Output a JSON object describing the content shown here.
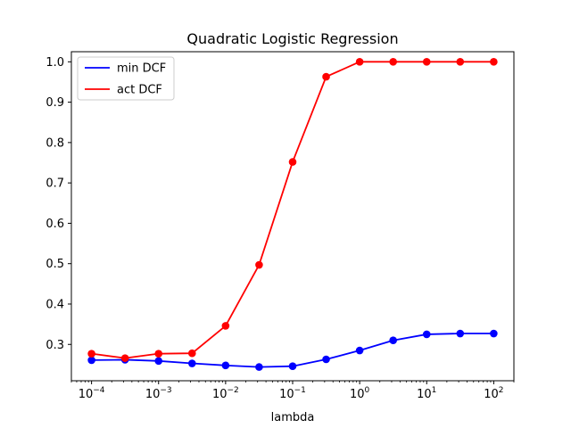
{
  "chart_data": {
    "type": "line",
    "title": "Quadratic Logistic Regression",
    "xlabel": "lambda",
    "ylabel": "",
    "xscale": "log",
    "x": [
      0.0001,
      0.000316,
      0.001,
      0.00316,
      0.01,
      0.0316,
      0.1,
      0.316,
      1,
      3.16,
      10,
      31.6,
      100
    ],
    "xlim": [
      5e-05,
      200
    ],
    "ylim": [
      0.21,
      1.025
    ],
    "xticks": [
      0.0001,
      0.001,
      0.01,
      0.1,
      1,
      10,
      100
    ],
    "xtick_labels": [
      {
        "base": "10",
        "exp": "−4"
      },
      {
        "base": "10",
        "exp": "−3"
      },
      {
        "base": "10",
        "exp": "−2"
      },
      {
        "base": "10",
        "exp": "−1"
      },
      {
        "base": "10",
        "exp": "0"
      },
      {
        "base": "10",
        "exp": "1"
      },
      {
        "base": "10",
        "exp": "2"
      }
    ],
    "yticks": [
      0.3,
      0.4,
      0.5,
      0.6,
      0.7,
      0.8,
      0.9,
      1.0
    ],
    "ytick_labels": [
      "0.3",
      "0.4",
      "0.5",
      "0.6",
      "0.7",
      "0.8",
      "0.9",
      "1.0"
    ],
    "grid": false,
    "legend_position": "top-left",
    "series": [
      {
        "name": "min DCF",
        "color": "#0000ff",
        "marker": "circle",
        "values": [
          0.261,
          0.262,
          0.259,
          0.253,
          0.248,
          0.244,
          0.246,
          0.263,
          0.285,
          0.31,
          0.325,
          0.327,
          0.327
        ]
      },
      {
        "name": "act DCF",
        "color": "#ff0000",
        "marker": "circle",
        "values": [
          0.277,
          0.266,
          0.277,
          0.278,
          0.346,
          0.497,
          0.752,
          0.963,
          1.0,
          1.0,
          1.0,
          1.0,
          1.0
        ]
      }
    ]
  }
}
